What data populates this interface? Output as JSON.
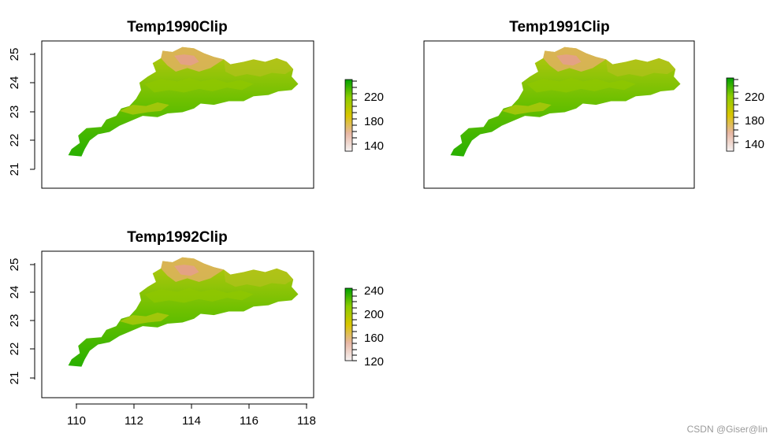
{
  "watermark": "CSDN @Giser@lin",
  "chart_data": [
    {
      "type": "raster-map",
      "title": "Temp1990Clip",
      "lat_ticks": [
        "21",
        "22",
        "23",
        "24",
        "25"
      ],
      "lon_ticks": [],
      "legend_ticks": [
        "140",
        "180",
        "220"
      ],
      "legend_range": [
        130,
        245
      ],
      "legend_colors": [
        "#f2f2f2",
        "#e8b7a3",
        "#d9d000",
        "#8ecf00",
        "#00a000"
      ]
    },
    {
      "type": "raster-map",
      "title": "Temp1991Clip",
      "lat_ticks": [],
      "lon_ticks": [],
      "legend_ticks": [
        "140",
        "180",
        "220"
      ],
      "legend_range": [
        130,
        245
      ],
      "legend_colors": [
        "#f2f2f2",
        "#e8b7a3",
        "#d9d000",
        "#8ecf00",
        "#00a000"
      ]
    },
    {
      "type": "raster-map",
      "title": "Temp1992Clip",
      "lat_ticks": [
        "21",
        "22",
        "23",
        "24",
        "25"
      ],
      "lon_ticks": [
        "110",
        "112",
        "114",
        "116",
        "118"
      ],
      "legend_ticks": [
        "120",
        "160",
        "200",
        "240"
      ],
      "legend_range": [
        115,
        250
      ],
      "legend_colors": [
        "#f2f2f2",
        "#e8b7a3",
        "#d9d000",
        "#8ecf00",
        "#00a000"
      ]
    }
  ]
}
